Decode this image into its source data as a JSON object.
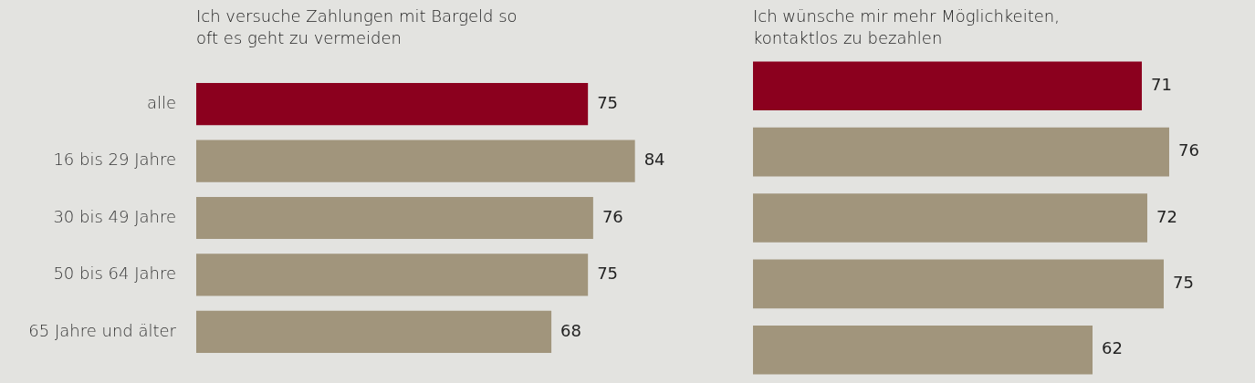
{
  "chart_data": [
    {
      "type": "bar",
      "orientation": "horizontal",
      "title": "Ich versuche Zahlungen mit Bargeld so oft es geht zu vermeiden",
      "categories": [
        "alle",
        "16 bis 29 Jahre",
        "30 bis 49 Jahre",
        "50 bis 64 Jahre",
        "65 Jahre und älter"
      ],
      "values": [
        75,
        84,
        76,
        75,
        68
      ],
      "colors": [
        "#8b001e",
        "#a1957c",
        "#a1957c",
        "#a1957c",
        "#a1957c"
      ],
      "data_labels": true,
      "tick_labels": "y",
      "grid": false,
      "legend": false
    },
    {
      "type": "bar",
      "orientation": "horizontal",
      "title": "Ich wünsche mir mehr Möglichkeiten, kontaktlos zu bezahlen",
      "categories": [
        null,
        null,
        null,
        null,
        null
      ],
      "values": [
        71,
        76,
        72,
        75,
        62
      ],
      "colors": [
        "#8b001e",
        "#a1957c",
        "#a1957c",
        "#a1957c",
        "#a1957c"
      ],
      "data_labels": true,
      "tick_labels": false,
      "grid": false,
      "legend": false
    }
  ]
}
